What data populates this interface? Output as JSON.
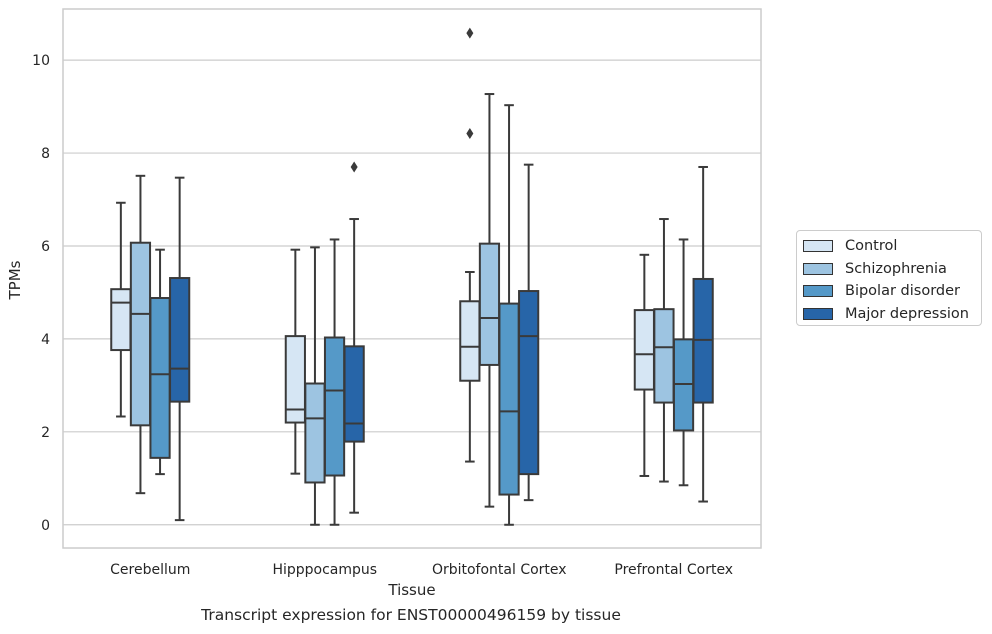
{
  "chart_data": {
    "type": "box",
    "xlabel": "Tissue",
    "ylabel": "TPMs",
    "caption": "Transcript expression for ENST00000496159 by tissue",
    "ylim": [
      -0.5,
      11.1
    ],
    "yticks": [
      0,
      2,
      4,
      6,
      8,
      10
    ],
    "grid": "horizontal",
    "legend_position": "right",
    "categories": [
      "Cerebellum",
      "Hipppocampus",
      "Orbitofontal Cortex",
      "Prefrontal Cortex"
    ],
    "series": [
      {
        "name": "Control",
        "color": "#d6e6f4",
        "boxes": [
          {
            "whisker_low": 2.33,
            "q1": 3.76,
            "median": 4.78,
            "q3": 5.07,
            "whisker_high": 6.93,
            "outliers": []
          },
          {
            "whisker_low": 1.1,
            "q1": 2.2,
            "median": 2.48,
            "q3": 4.06,
            "whisker_high": 5.92,
            "outliers": []
          },
          {
            "whisker_low": 1.36,
            "q1": 3.1,
            "median": 3.83,
            "q3": 4.81,
            "whisker_high": 5.44,
            "outliers": [
              8.42,
              10.58
            ]
          },
          {
            "whisker_low": 1.05,
            "q1": 2.91,
            "median": 3.67,
            "q3": 4.62,
            "whisker_high": 5.81,
            "outliers": []
          }
        ]
      },
      {
        "name": "Schizophrenia",
        "color": "#9dc4e1",
        "boxes": [
          {
            "whisker_low": 0.68,
            "q1": 2.14,
            "median": 4.54,
            "q3": 6.07,
            "whisker_high": 7.51,
            "outliers": []
          },
          {
            "whisker_low": 0.0,
            "q1": 0.91,
            "median": 2.29,
            "q3": 3.04,
            "whisker_high": 5.97,
            "outliers": []
          },
          {
            "whisker_low": 0.39,
            "q1": 3.44,
            "median": 4.45,
            "q3": 6.05,
            "whisker_high": 9.27,
            "outliers": []
          },
          {
            "whisker_low": 0.93,
            "q1": 2.63,
            "median": 3.82,
            "q3": 4.64,
            "whisker_high": 6.58,
            "outliers": []
          }
        ]
      },
      {
        "name": "Bipolar disorder",
        "color": "#5599c8",
        "boxes": [
          {
            "whisker_low": 1.09,
            "q1": 1.44,
            "median": 3.24,
            "q3": 4.88,
            "whisker_high": 5.92,
            "outliers": []
          },
          {
            "whisker_low": 0.0,
            "q1": 1.06,
            "median": 2.89,
            "q3": 4.03,
            "whisker_high": 6.14,
            "outliers": []
          },
          {
            "whisker_low": 0.0,
            "q1": 0.65,
            "median": 2.44,
            "q3": 4.76,
            "whisker_high": 9.03,
            "outliers": []
          },
          {
            "whisker_low": 0.85,
            "q1": 2.03,
            "median": 3.03,
            "q3": 3.99,
            "whisker_high": 6.14,
            "outliers": []
          }
        ]
      },
      {
        "name": "Major depression",
        "color": "#2765a8",
        "boxes": [
          {
            "whisker_low": 0.1,
            "q1": 2.65,
            "median": 3.36,
            "q3": 5.31,
            "whisker_high": 7.47,
            "outliers": []
          },
          {
            "whisker_low": 0.26,
            "q1": 1.79,
            "median": 2.18,
            "q3": 3.84,
            "whisker_high": 6.58,
            "outliers": [
              7.7
            ]
          },
          {
            "whisker_low": 0.53,
            "q1": 1.09,
            "median": 4.06,
            "q3": 5.03,
            "whisker_high": 7.75,
            "outliers": []
          },
          {
            "whisker_low": 0.5,
            "q1": 2.63,
            "median": 3.98,
            "q3": 5.29,
            "whisker_high": 7.7,
            "outliers": []
          }
        ]
      }
    ]
  }
}
